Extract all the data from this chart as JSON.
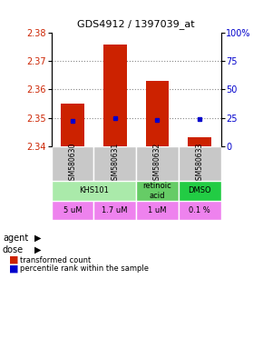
{
  "title": "GDS4912 / 1397039_at",
  "samples": [
    "GSM580630",
    "GSM580631",
    "GSM580632",
    "GSM580633"
  ],
  "bar_values": [
    2.355,
    2.376,
    2.363,
    2.343
  ],
  "bar_bottom": 2.34,
  "percentile_pct": [
    22,
    25,
    23,
    24
  ],
  "ylim": [
    2.34,
    2.38
  ],
  "yticks": [
    2.34,
    2.35,
    2.36,
    2.37,
    2.38
  ],
  "right_yticks": [
    0,
    25,
    50,
    75,
    100
  ],
  "right_ylim": [
    0,
    100
  ],
  "doses": [
    "5 uM",
    "1.7 uM",
    "1 uM",
    "0.1 %"
  ],
  "dose_color": "#EE82EE",
  "bar_color": "#CC2200",
  "percentile_color": "#0000CC",
  "ylabel_left_color": "#CC2200",
  "ylabel_right_color": "#0000CC",
  "sample_bg_color": "#C8C8C8",
  "agent_groups": [
    {
      "label": "KHS101",
      "cols": [
        0,
        1
      ],
      "color": "#AAEAAA"
    },
    {
      "label": "retinoic\nacid",
      "cols": [
        2
      ],
      "color": "#66CC66"
    },
    {
      "label": "DMSO",
      "cols": [
        3
      ],
      "color": "#22CC44"
    }
  ]
}
